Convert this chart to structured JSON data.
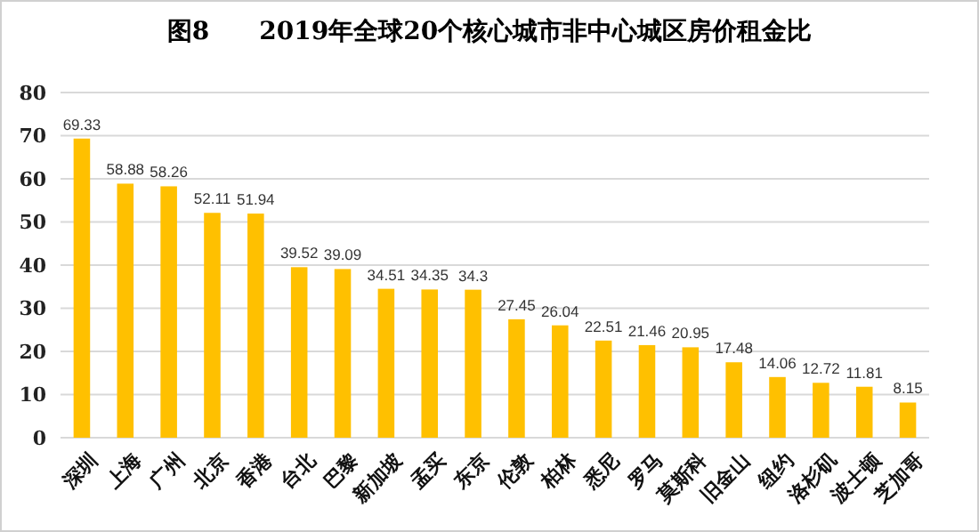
{
  "chart_data": {
    "type": "bar",
    "title": "图8　　2019年全球20个核心城市非中心城区房价租金比",
    "categories": [
      "深圳",
      "上海",
      "广州",
      "北京",
      "香港",
      "台北",
      "巴黎",
      "新加坡",
      "孟买",
      "东京",
      "伦敦",
      "柏林",
      "悉尼",
      "罗马",
      "莫斯科",
      "旧金山",
      "纽约",
      "洛杉矶",
      "波士顿",
      "芝加哥"
    ],
    "values": [
      69.33,
      58.88,
      58.26,
      52.11,
      51.94,
      39.52,
      39.09,
      34.51,
      34.35,
      34.3,
      27.45,
      26.04,
      22.51,
      21.46,
      20.95,
      17.48,
      14.06,
      12.72,
      11.81,
      8.15
    ],
    "color": "#ffc000",
    "ylim": [
      0,
      80
    ],
    "yticks": [
      0,
      10,
      20,
      30,
      40,
      50,
      60,
      70,
      80
    ],
    "grid": "y",
    "data_labels": true
  }
}
